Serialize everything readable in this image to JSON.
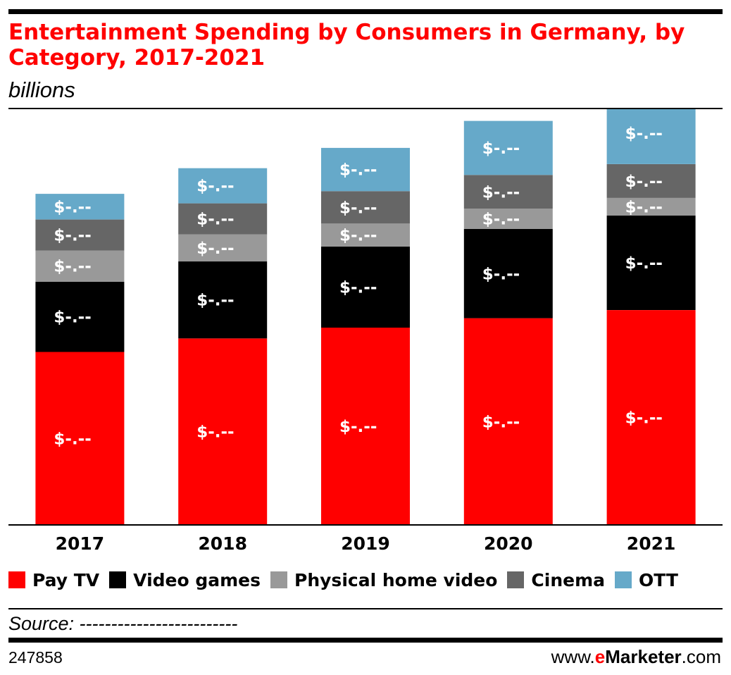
{
  "title": "Entertainment Spending by Consumers in Germany, by Category, 2017-2021",
  "subtitle": "billions",
  "source": "Source: -------------------------",
  "chart_id": "247858",
  "brand": {
    "prefix": "www.",
    "e": "e",
    "name": "Marketer",
    "suffix": ".com"
  },
  "colors": {
    "title": "#ff0000",
    "pay_tv": "#ff0000",
    "video_games": "#000000",
    "physical_home_video": "#999999",
    "cinema": "#666666",
    "ott": "#66a9c9"
  },
  "chart_data": {
    "type": "bar",
    "stacked": true,
    "title": "Entertainment Spending by Consumers in Germany, by Category, 2017-2021",
    "subtitle": "billions",
    "xlabel": "",
    "ylabel": "",
    "categories": [
      "2017",
      "2018",
      "2019",
      "2020",
      "2021"
    ],
    "ylim": [
      0,
      3.04
    ],
    "grid": false,
    "legend_position": "bottom",
    "series": [
      {
        "name": "Pay TV",
        "values": [
          1.28,
          1.38,
          1.46,
          1.53,
          1.59
        ],
        "color": "#ff0000",
        "labels": [
          "$-.--",
          "$-.--",
          "$-.--",
          "$-.--",
          "$-.--"
        ]
      },
      {
        "name": "Video games",
        "values": [
          0.52,
          0.57,
          0.6,
          0.66,
          0.7
        ],
        "color": "#000000",
        "labels": [
          "$-.--",
          "$-.--",
          "$-.--",
          "$-.--",
          "$-.--"
        ]
      },
      {
        "name": "Physical home video",
        "values": [
          0.23,
          0.2,
          0.17,
          0.15,
          0.13
        ],
        "color": "#999999",
        "labels": [
          "$-.--",
          "$-.--",
          "$-.--",
          "$-.--",
          "$-.--"
        ]
      },
      {
        "name": "Cinema",
        "values": [
          0.23,
          0.23,
          0.24,
          0.25,
          0.25
        ],
        "color": "#666666",
        "labels": [
          "$-.--",
          "$-.--",
          "$-.--",
          "$-.--",
          "$-.--"
        ]
      },
      {
        "name": "OTT",
        "values": [
          0.19,
          0.26,
          0.32,
          0.4,
          0.46
        ],
        "color": "#66a9c9",
        "labels": [
          "$-.--",
          "$-.--",
          "$-.--",
          "$-.--",
          "$-.--"
        ]
      }
    ]
  }
}
